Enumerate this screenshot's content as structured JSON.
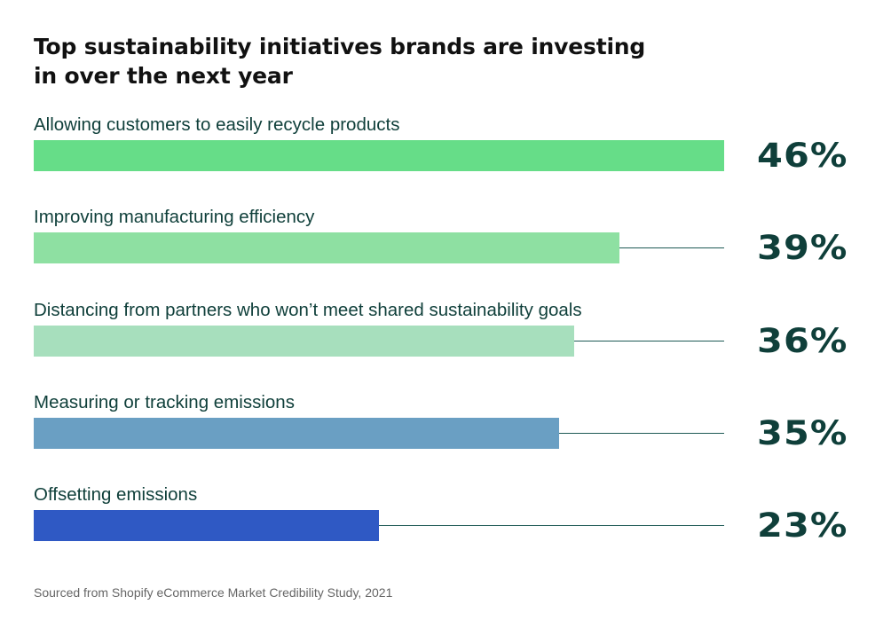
{
  "chart_data": {
    "type": "bar",
    "orientation": "horizontal",
    "title": "Top sustainability initiatives brands are investing in over the next year",
    "categories": [
      "Allowing customers to easily recycle products",
      "Improving manufacturing efficiency",
      "Distancing from partners who won’t meet shared sustainability goals",
      "Measuring or tracking emissions",
      "Offsetting emissions"
    ],
    "values": [
      46,
      39,
      36,
      35,
      23
    ],
    "value_labels": [
      "46%",
      "39%",
      "36%",
      "35%",
      "23%"
    ],
    "bar_colors": [
      "#66dd88",
      "#8ee0a2",
      "#a7dfbd",
      "#6a9fc3",
      "#2f59c4"
    ],
    "xlim": [
      0,
      46
    ],
    "unit": "%",
    "source": "Sourced from Shopify eCommerce Market Credibility Study, 2021",
    "line_color": "#1e5a55",
    "text_color": "#0f3f3a"
  }
}
